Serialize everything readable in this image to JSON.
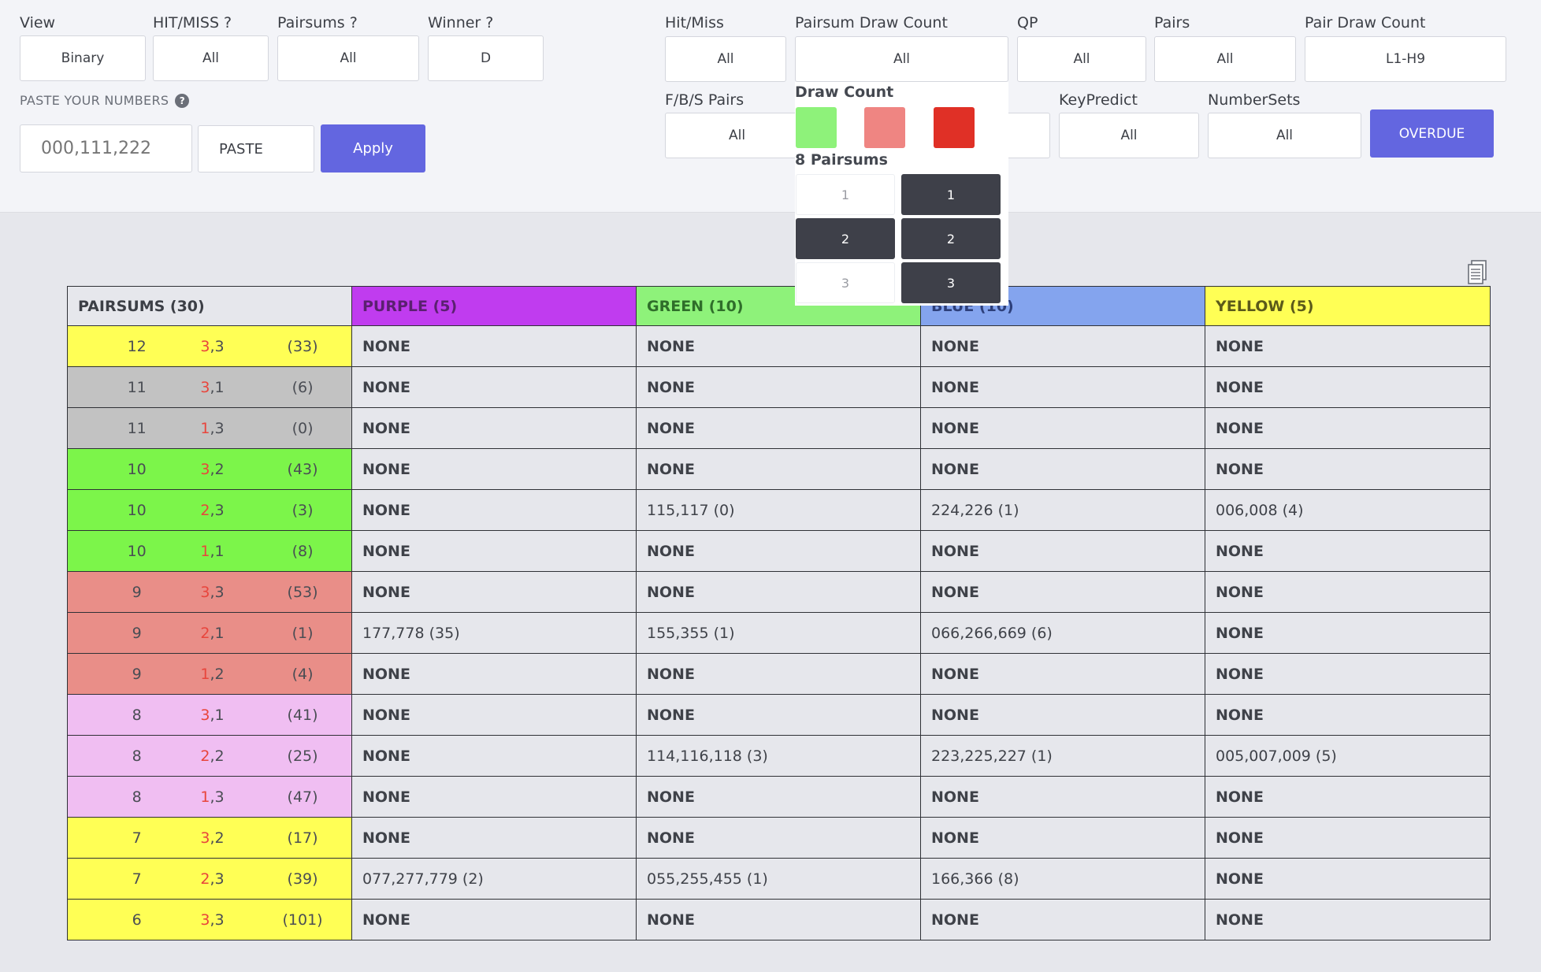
{
  "filters": {
    "view": {
      "label": "View",
      "value": "Binary"
    },
    "hitmiss_q": {
      "label": "HIT/MISS ?",
      "value": "All"
    },
    "pairsums_q": {
      "label": "Pairsums ?",
      "value": "All"
    },
    "winner_q": {
      "label": "Winner ?",
      "value": "D"
    },
    "hitmiss": {
      "label": "Hit/Miss",
      "value": "All"
    },
    "pairsum_draw_count": {
      "label": "Pairsum Draw Count",
      "value": "All"
    },
    "qp": {
      "label": "QP",
      "value": "All"
    },
    "pairs": {
      "label": "Pairs",
      "value": "All"
    },
    "pair_draw_count": {
      "label": "Pair Draw Count",
      "value": "L1-H9"
    },
    "fbs_pairs": {
      "label": "F/B/S Pairs",
      "value": "All"
    },
    "keypredict": {
      "label": "KeyPredict",
      "value": "All"
    },
    "numbersets": {
      "label": "NumberSets",
      "value": "All"
    }
  },
  "paste": {
    "label": "PASTE YOUR NUMBERS",
    "help": "?",
    "placeholder": "000,111,222",
    "paste_button": "PASTE",
    "apply_button": "Apply"
  },
  "overdue_button": "OVERDUE",
  "popup": {
    "draw_count_title": "Draw Count",
    "swatch_colors": [
      "#8ef27a",
      "#ef8582",
      "#e03026"
    ],
    "pairsums_title": "8 Pairsums",
    "left_options": [
      {
        "label": "1",
        "selected": false
      },
      {
        "label": "2",
        "selected": true
      },
      {
        "label": "3",
        "selected": false
      }
    ],
    "right_options": [
      {
        "label": "1",
        "selected": true
      },
      {
        "label": "2",
        "selected": true
      },
      {
        "label": "3",
        "selected": true
      }
    ]
  },
  "table": {
    "headers": [
      {
        "label": "PAIRSUMS (30)",
        "color": "#e6e7ec"
      },
      {
        "label": "PURPLE (5)",
        "color": "#c03cef"
      },
      {
        "label": "GREEN (10)",
        "color": "#8ef27a"
      },
      {
        "label": "BLUE (10)",
        "color": "#84a4ee"
      },
      {
        "label": "YELLOW (5)",
        "color": "#ffff55"
      }
    ],
    "rows": [
      {
        "sum": "12",
        "pa": "3",
        "pb": "3",
        "count": "(33)",
        "color": "#ffff55",
        "cells": [
          "NONE",
          "NONE",
          "NONE",
          "NONE"
        ]
      },
      {
        "sum": "11",
        "pa": "3",
        "pb": "1",
        "count": "(6)",
        "color": "#c2c2c2",
        "cells": [
          "NONE",
          "NONE",
          "NONE",
          "NONE"
        ]
      },
      {
        "sum": "11",
        "pa": "1",
        "pb": "3",
        "count": "(0)",
        "color": "#c2c2c2",
        "cells": [
          "NONE",
          "NONE",
          "NONE",
          "NONE"
        ]
      },
      {
        "sum": "10",
        "pa": "3",
        "pb": "2",
        "count": "(43)",
        "color": "#7cf54a",
        "cells": [
          "NONE",
          "NONE",
          "NONE",
          "NONE"
        ]
      },
      {
        "sum": "10",
        "pa": "2",
        "pb": "3",
        "count": "(3)",
        "color": "#7cf54a",
        "cells": [
          "NONE",
          "115,117 (0)",
          "224,226 (1)",
          "006,008 (4)"
        ]
      },
      {
        "sum": "10",
        "pa": "1",
        "pb": "1",
        "count": "(8)",
        "color": "#7cf54a",
        "cells": [
          "NONE",
          "NONE",
          "NONE",
          "NONE"
        ]
      },
      {
        "sum": "9",
        "pa": "3",
        "pb": "3",
        "count": "(53)",
        "color": "#e98e88",
        "cells": [
          "NONE",
          "NONE",
          "NONE",
          "NONE"
        ]
      },
      {
        "sum": "9",
        "pa": "2",
        "pb": "1",
        "count": "(1)",
        "color": "#e98e88",
        "cells": [
          "177,778 (35)",
          "155,355 (1)",
          "066,266,669 (6)",
          "NONE"
        ]
      },
      {
        "sum": "9",
        "pa": "1",
        "pb": "2",
        "count": "(4)",
        "color": "#e98e88",
        "cells": [
          "NONE",
          "NONE",
          "NONE",
          "NONE"
        ]
      },
      {
        "sum": "8",
        "pa": "3",
        "pb": "1",
        "count": "(41)",
        "color": "#f0bef2",
        "cells": [
          "NONE",
          "NONE",
          "NONE",
          "NONE"
        ]
      },
      {
        "sum": "8",
        "pa": "2",
        "pb": "2",
        "count": "(25)",
        "color": "#f0bef2",
        "cells": [
          "NONE",
          "114,116,118 (3)",
          "223,225,227 (1)",
          "005,007,009 (5)"
        ]
      },
      {
        "sum": "8",
        "pa": "1",
        "pb": "3",
        "count": "(47)",
        "color": "#f0bef2",
        "cells": [
          "NONE",
          "NONE",
          "NONE",
          "NONE"
        ]
      },
      {
        "sum": "7",
        "pa": "3",
        "pb": "2",
        "count": "(17)",
        "color": "#ffff55",
        "cells": [
          "NONE",
          "NONE",
          "NONE",
          "NONE"
        ]
      },
      {
        "sum": "7",
        "pa": "2",
        "pb": "3",
        "count": "(39)",
        "color": "#ffff55",
        "cells": [
          "077,277,779 (2)",
          "055,255,455 (1)",
          "166,366 (8)",
          "NONE"
        ]
      },
      {
        "sum": "6",
        "pa": "3",
        "pb": "3",
        "count": "(101)",
        "color": "#ffff55",
        "cells": [
          "NONE",
          "NONE",
          "NONE",
          "NONE"
        ]
      }
    ]
  }
}
